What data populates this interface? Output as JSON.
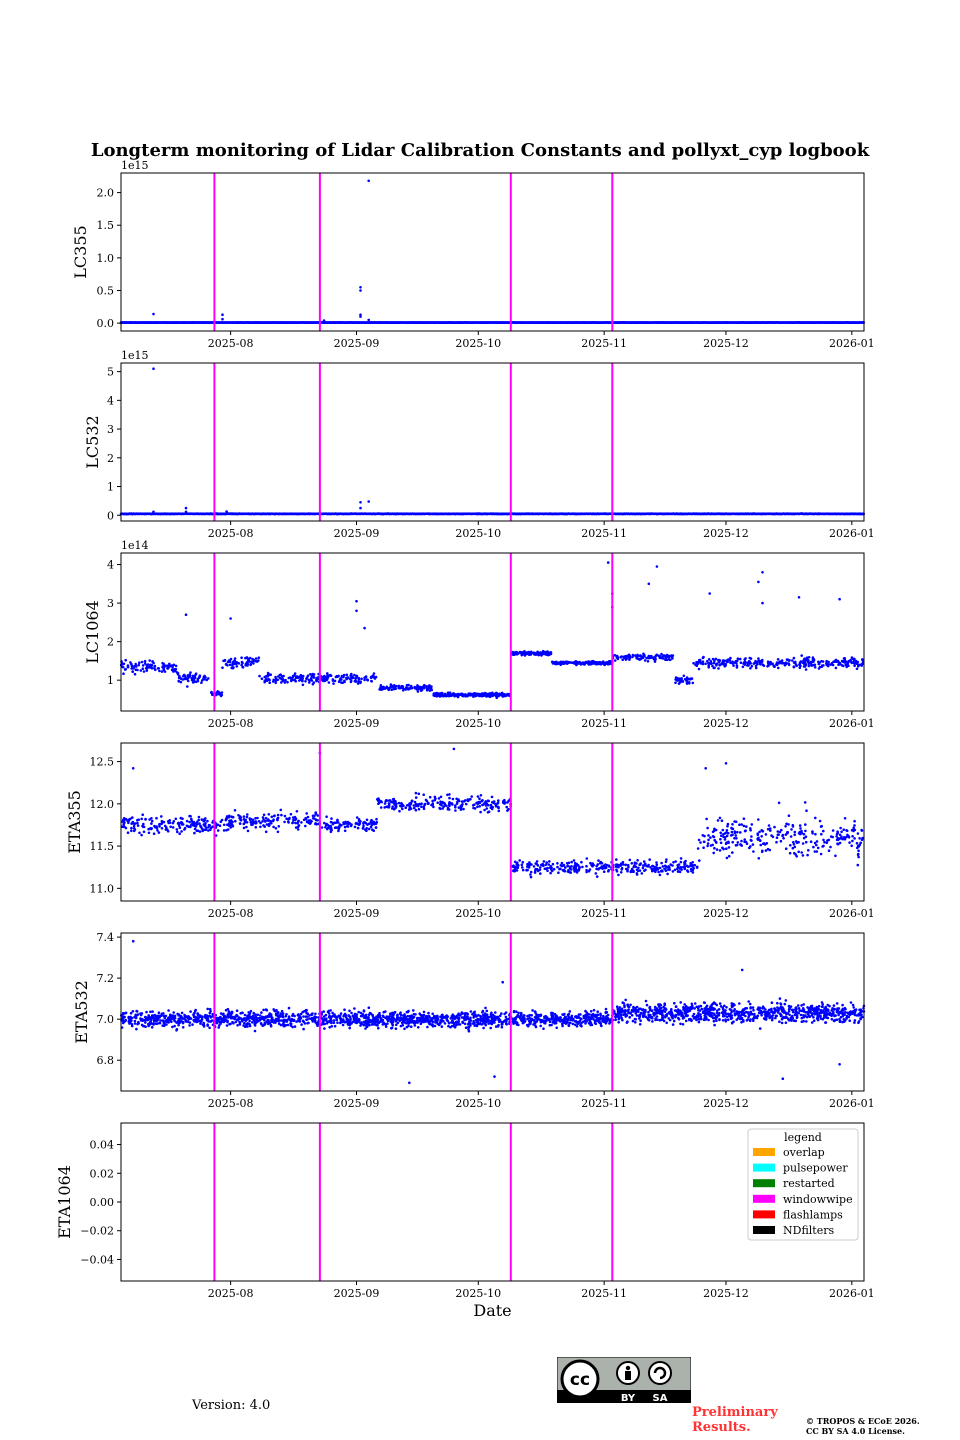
{
  "title": "Longterm monitoring of Lidar Calibration Constants and pollyxt_cyp logbook",
  "xlabel": "Date",
  "version": "Version: 4.0",
  "preliminary": [
    "Preliminary",
    "Results."
  ],
  "copyright": [
    "© TROPOS & ECoE 2026.",
    "CC BY SA 4.0 License."
  ],
  "license_badge": {
    "cc": "cc",
    "by": "BY",
    "sa": "SA"
  },
  "colors": {
    "data": "#0000ff",
    "windowwipe": "#ff00ff"
  },
  "chart_data": [
    {
      "type": "scatter",
      "ylabel": "LC355",
      "exponent_label": "1e15",
      "date_range": [
        "2025-07-05",
        "2026-01-04"
      ],
      "xticks": [
        "2025-08",
        "2025-09",
        "2025-10",
        "2025-11",
        "2025-12",
        "2026-01"
      ],
      "ylim": [
        -0.12,
        2.3
      ],
      "yticks": [
        0.0,
        0.5,
        1.0,
        1.5,
        2.0
      ],
      "ytick_labels": [
        "0.0",
        "0.5",
        "1.0",
        "1.5",
        "2.0"
      ],
      "baseline": {
        "level": 0.01,
        "spread": 0.004
      },
      "outliers": [
        [
          "2025-07-13",
          0.14
        ],
        [
          "2025-07-30",
          0.13
        ],
        [
          "2025-07-30",
          0.06
        ],
        [
          "2025-09-02",
          0.55
        ],
        [
          "2025-09-02",
          0.5
        ],
        [
          "2025-09-02",
          0.13
        ],
        [
          "2025-09-02",
          0.1
        ],
        [
          "2025-09-04",
          2.18
        ],
        [
          "2025-09-04",
          0.05
        ],
        [
          "2025-08-24",
          0.04
        ]
      ]
    },
    {
      "type": "scatter",
      "ylabel": "LC532",
      "exponent_label": "1e15",
      "date_range": [
        "2025-07-05",
        "2026-01-04"
      ],
      "xticks": [
        "2025-08",
        "2025-09",
        "2025-10",
        "2025-11",
        "2025-12",
        "2026-01"
      ],
      "ylim": [
        -0.2,
        5.3
      ],
      "yticks": [
        0,
        1,
        2,
        3,
        4,
        5
      ],
      "ytick_labels": [
        "0",
        "1",
        "2",
        "3",
        "4",
        "5"
      ],
      "baseline": {
        "level": 0.05,
        "spread": 0.015
      },
      "outliers": [
        [
          "2025-07-13",
          5.1
        ],
        [
          "2025-07-13",
          0.12
        ],
        [
          "2025-07-21",
          0.25
        ],
        [
          "2025-07-21",
          0.12
        ],
        [
          "2025-07-31",
          0.13
        ],
        [
          "2025-09-02",
          0.45
        ],
        [
          "2025-09-02",
          0.25
        ],
        [
          "2025-09-04",
          0.48
        ]
      ]
    },
    {
      "type": "scatter",
      "ylabel": "LC1064",
      "exponent_label": "1e14",
      "date_range": [
        "2025-07-05",
        "2026-01-04"
      ],
      "xticks": [
        "2025-08",
        "2025-09",
        "2025-10",
        "2025-11",
        "2025-12",
        "2026-01"
      ],
      "ylim": [
        0.2,
        4.3
      ],
      "yticks": [
        1,
        2,
        3,
        4
      ],
      "ytick_labels": [
        "1",
        "2",
        "3",
        "4"
      ],
      "segments": [
        {
          "from": "2025-07-05",
          "to": "2025-07-19",
          "mean": 1.35,
          "spread": 0.3
        },
        {
          "from": "2025-07-19",
          "to": "2025-07-27",
          "mean": 1.05,
          "spread": 0.3
        },
        {
          "from": "2025-07-27",
          "to": "2025-07-30",
          "mean": 0.65,
          "spread": 0.15
        },
        {
          "from": "2025-07-30",
          "to": "2025-08-08",
          "mean": 1.45,
          "spread": 0.28
        },
        {
          "from": "2025-08-08",
          "to": "2025-08-23",
          "mean": 1.05,
          "spread": 0.25
        },
        {
          "from": "2025-08-23",
          "to": "2025-09-06",
          "mean": 1.05,
          "spread": 0.25
        },
        {
          "from": "2025-09-06",
          "to": "2025-09-20",
          "mean": 0.8,
          "spread": 0.15
        },
        {
          "from": "2025-09-20",
          "to": "2025-10-09",
          "mean": 0.62,
          "spread": 0.1
        },
        {
          "from": "2025-10-09",
          "to": "2025-10-19",
          "mean": 1.7,
          "spread": 0.1
        },
        {
          "from": "2025-10-19",
          "to": "2025-11-03",
          "mean": 1.45,
          "spread": 0.08
        },
        {
          "from": "2025-11-03",
          "to": "2025-11-18",
          "mean": 1.6,
          "spread": 0.18
        },
        {
          "from": "2025-11-18",
          "to": "2025-11-23",
          "mean": 1.0,
          "spread": 0.2
        },
        {
          "from": "2025-11-23",
          "to": "2025-12-09",
          "mean": 1.45,
          "spread": 0.25
        },
        {
          "from": "2025-12-09",
          "to": "2026-01-04",
          "mean": 1.45,
          "spread": 0.3
        }
      ],
      "outliers": [
        [
          "2025-07-21",
          2.7
        ],
        [
          "2025-08-01",
          2.6
        ],
        [
          "2025-09-01",
          3.05
        ],
        [
          "2025-09-01",
          2.8
        ],
        [
          "2025-09-03",
          2.35
        ],
        [
          "2025-11-02",
          4.05
        ],
        [
          "2025-11-03",
          3.25
        ],
        [
          "2025-11-03",
          2.9
        ],
        [
          "2025-11-12",
          3.5
        ],
        [
          "2025-11-14",
          3.95
        ],
        [
          "2025-11-27",
          3.25
        ],
        [
          "2025-12-09",
          3.55
        ],
        [
          "2025-12-10",
          3.8
        ],
        [
          "2025-12-10",
          3.0
        ],
        [
          "2025-12-19",
          3.15
        ],
        [
          "2025-12-29",
          3.1
        ]
      ]
    },
    {
      "type": "scatter",
      "ylabel": "ETA355",
      "exponent_label": "",
      "date_range": [
        "2025-07-05",
        "2026-01-04"
      ],
      "xticks": [
        "2025-08",
        "2025-09",
        "2025-10",
        "2025-11",
        "2025-12",
        "2026-01"
      ],
      "ylim": [
        10.85,
        12.72
      ],
      "yticks": [
        11.0,
        11.5,
        12.0,
        12.5
      ],
      "ytick_labels": [
        "11.0",
        "11.5",
        "12.0",
        "12.5"
      ],
      "segments": [
        {
          "from": "2025-07-05",
          "to": "2025-07-31",
          "mean": 11.75,
          "spread": 0.22
        },
        {
          "from": "2025-07-31",
          "to": "2025-08-23",
          "mean": 11.8,
          "spread": 0.2
        },
        {
          "from": "2025-08-23",
          "to": "2025-09-06",
          "mean": 11.75,
          "spread": 0.18
        },
        {
          "from": "2025-09-06",
          "to": "2025-10-09",
          "mean": 12.0,
          "spread": 0.18
        },
        {
          "from": "2025-10-09",
          "to": "2025-11-24",
          "mean": 11.25,
          "spread": 0.18
        },
        {
          "from": "2025-11-24",
          "to": "2026-01-04",
          "mean": 11.6,
          "spread": 0.5
        }
      ],
      "outliers": [
        [
          "2025-07-08",
          12.42
        ],
        [
          "2025-08-23",
          12.6
        ],
        [
          "2025-09-25",
          12.65
        ],
        [
          "2025-11-26",
          12.42
        ],
        [
          "2025-12-01",
          12.48
        ]
      ]
    },
    {
      "type": "scatter",
      "ylabel": "ETA532",
      "exponent_label": "",
      "date_range": [
        "2025-07-05",
        "2026-01-04"
      ],
      "xticks": [
        "2025-08",
        "2025-09",
        "2025-10",
        "2025-11",
        "2025-12",
        "2026-01"
      ],
      "ylim": [
        6.65,
        7.42
      ],
      "yticks": [
        6.8,
        7.0,
        7.2,
        7.4
      ],
      "ytick_labels": [
        "6.8",
        "7.0",
        "7.2",
        "7.4"
      ],
      "segments": [
        {
          "from": "2025-07-05",
          "to": "2025-11-03",
          "mean": 7.0,
          "spread": 0.08
        },
        {
          "from": "2025-11-03",
          "to": "2026-01-04",
          "mean": 7.03,
          "spread": 0.1
        }
      ],
      "outliers": [
        [
          "2025-07-08",
          7.38
        ],
        [
          "2025-09-14",
          6.69
        ],
        [
          "2025-10-05",
          6.72
        ],
        [
          "2025-12-05",
          7.24
        ],
        [
          "2025-12-15",
          6.71
        ],
        [
          "2025-12-29",
          6.78
        ],
        [
          "2025-10-07",
          7.18
        ]
      ]
    },
    {
      "type": "scatter",
      "ylabel": "ETA1064",
      "exponent_label": "",
      "date_range": [
        "2025-07-05",
        "2026-01-04"
      ],
      "xticks": [
        "2025-08",
        "2025-09",
        "2025-10",
        "2025-11",
        "2025-12",
        "2026-01"
      ],
      "ylim": [
        -0.055,
        0.055
      ],
      "yticks": [
        -0.04,
        -0.02,
        0.0,
        0.02,
        0.04
      ],
      "ytick_labels": [
        "−0.04",
        "−0.02",
        "0.00",
        "0.02",
        "0.04"
      ],
      "no_data": true
    }
  ],
  "events": {
    "windowwipe": [
      "2025-07-28",
      "2025-08-23",
      "2025-10-09",
      "2025-11-03"
    ]
  },
  "legend": {
    "title": "legend",
    "entries": [
      {
        "label": "overlap",
        "color": "#ffa500"
      },
      {
        "label": "pulsepower",
        "color": "#00ffff"
      },
      {
        "label": "restarted",
        "color": "#008000"
      },
      {
        "label": "windowwipe",
        "color": "#ff00ff"
      },
      {
        "label": "flashlamps",
        "color": "#ff0000"
      },
      {
        "label": "NDfilters",
        "color": "#000000"
      }
    ]
  }
}
